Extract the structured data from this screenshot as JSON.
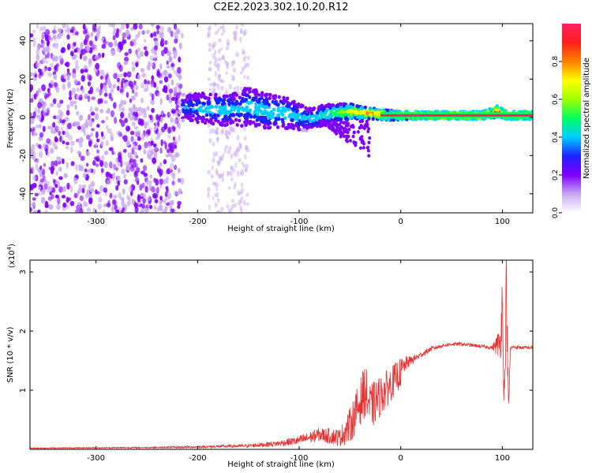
{
  "title": "C2E2.2023.302.10.20.R12",
  "chart_data": [
    {
      "type": "heatmap",
      "title": "C2E2.2023.302.10.20.R12",
      "xlabel": "Height of straight line (km)",
      "ylabel": "Frequency (Hz)",
      "xlim": [
        -365,
        130
      ],
      "ylim": [
        -50,
        49
      ],
      "xticks": [
        -300,
        -200,
        -100,
        0,
        100
      ],
      "xtick_labels": [
        "-300",
        "-200",
        "-100",
        "0",
        "100"
      ],
      "yticks": [
        -40,
        -20,
        0,
        20,
        40
      ],
      "ytick_labels": [
        "-40",
        "-20",
        "0",
        "20",
        "40"
      ],
      "colorbar": {
        "label": "Normalized spectral amplitude",
        "range": [
          0,
          1
        ],
        "ticks": [
          0.0,
          0.2,
          0.4,
          0.6,
          0.8
        ],
        "tick_labels": [
          "0.0",
          "0.2",
          "0.4",
          "0.6",
          "0.8"
        ],
        "colors": [
          "#ffffff",
          "#c8a8f0",
          "#8000ff",
          "#2020ff",
          "#00ccff",
          "#00ff60",
          "#a0ff00",
          "#ffff00",
          "#ff8000",
          "#ff2020",
          "#ff2060"
        ]
      },
      "band": {
        "x": [
          -215,
          -200,
          -180,
          -160,
          -150,
          -130,
          -110,
          -90,
          -70,
          -50,
          -30,
          -10,
          10,
          40,
          80,
          95,
          105,
          130
        ],
        "center_hz": [
          5,
          5,
          4,
          4,
          6,
          3,
          2,
          -1,
          2,
          3,
          2,
          1,
          1,
          1,
          1,
          3,
          1,
          1
        ],
        "width_hz": [
          7,
          8,
          8,
          9,
          10,
          9,
          8,
          6,
          5,
          4,
          3,
          2.5,
          2,
          2,
          2,
          3,
          2,
          2
        ],
        "intensity": [
          0.35,
          0.4,
          0.45,
          0.4,
          0.45,
          0.45,
          0.45,
          0.4,
          0.5,
          0.7,
          0.8,
          0.9,
          0.95,
          1,
          1,
          0.9,
          1,
          1
        ],
        "noise_region_x": [
          -365,
          -215
        ],
        "sparse_region_x": [
          -190,
          -150
        ]
      }
    },
    {
      "type": "line",
      "xlabel": "Height of straight line (km)",
      "ylabel": "SNR (10 * v/v)",
      "y_multiplier": "(x10",
      "y_multiplier_exp": "4",
      "y_multiplier_close": ")",
      "xlim": [
        -365,
        130
      ],
      "ylim": [
        0,
        3.2
      ],
      "xticks": [
        -300,
        -200,
        -100,
        0,
        100
      ],
      "xtick_labels": [
        "-300",
        "-200",
        "-100",
        "0",
        "100"
      ],
      "yticks": [
        1,
        2,
        3
      ],
      "ytick_labels": [
        "1",
        "2",
        "3"
      ],
      "color": "#e83030",
      "x": [
        -365,
        -250,
        -200,
        -150,
        -120,
        -100,
        -80,
        -60,
        -50,
        -40,
        -35,
        -30,
        -20,
        -10,
        0,
        5,
        10,
        20,
        30,
        40,
        50,
        60,
        70,
        80,
        90,
        98,
        100,
        102,
        104,
        106,
        108,
        110,
        120,
        130
      ],
      "y": [
        0.02,
        0.03,
        0.04,
        0.06,
        0.1,
        0.15,
        0.25,
        0.2,
        0.4,
        0.8,
        1.0,
        0.7,
        0.9,
        1.1,
        1.3,
        1.45,
        1.5,
        1.6,
        1.7,
        1.75,
        1.78,
        1.78,
        1.76,
        1.74,
        1.72,
        1.8,
        2.5,
        0.8,
        2.8,
        0.6,
        1.7,
        1.73,
        1.72,
        1.72
      ],
      "noise_amp": [
        0.01,
        0.01,
        0.02,
        0.03,
        0.05,
        0.08,
        0.12,
        0.15,
        0.3,
        0.4,
        0.45,
        0.4,
        0.35,
        0.3,
        0.25,
        0.12,
        0.08,
        0.05,
        0.04,
        0.03,
        0.03,
        0.03,
        0.03,
        0.03,
        0.03,
        0.3,
        0.6,
        0.3,
        0.6,
        0.3,
        0.05,
        0.03,
        0.03,
        0.03
      ]
    }
  ]
}
